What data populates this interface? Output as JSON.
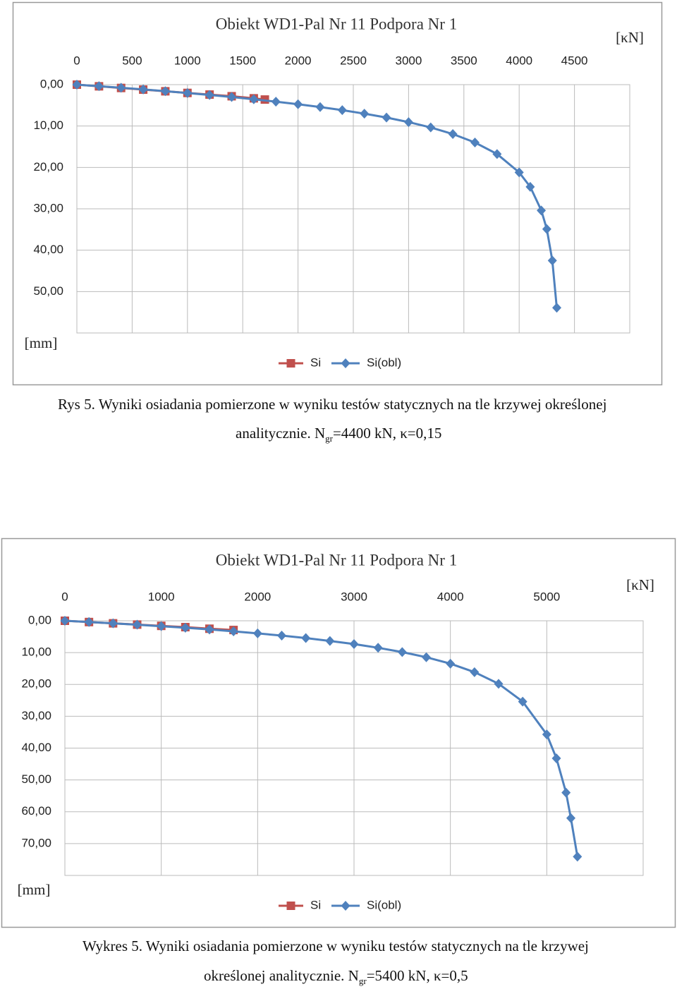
{
  "chart_data": [
    {
      "type": "line",
      "title": "Obiekt WD1-Pal Nr 11 Podpora Nr 1",
      "x_unit_label": "[κN]",
      "y_unit_label": "[mm]",
      "x_axis_position": "top",
      "y_reversed": true,
      "grid": true,
      "xlim": [
        0,
        5000
      ],
      "xticks": [
        0,
        500,
        1000,
        1500,
        2000,
        2500,
        3000,
        3500,
        4000,
        4500
      ],
      "ylim": [
        0,
        60
      ],
      "yticks": [
        {
          "value": 0,
          "label": "0,00"
        },
        {
          "value": 10,
          "label": "10,00"
        },
        {
          "value": 20,
          "label": "20,00"
        },
        {
          "value": 30,
          "label": "30,00"
        },
        {
          "value": 40,
          "label": "40,00"
        },
        {
          "value": 50,
          "label": "50,00"
        }
      ],
      "series": [
        {
          "name": "Si",
          "color": "#c0504d",
          "marker": "square",
          "x": [
            0,
            200,
            400,
            600,
            800,
            1000,
            1200,
            1400,
            1600,
            1700
          ],
          "values": [
            0,
            0.4,
            0.8,
            1.2,
            1.6,
            2.0,
            2.4,
            2.8,
            3.3,
            3.6
          ]
        },
        {
          "name": "Si(obl)",
          "color": "#4f81bd",
          "marker": "diamond",
          "x": [
            0,
            200,
            400,
            600,
            800,
            1000,
            1200,
            1400,
            1600,
            1800,
            2000,
            2200,
            2400,
            2600,
            2800,
            3000,
            3200,
            3400,
            3600,
            3800,
            4000,
            4100,
            4200,
            4250,
            4300,
            4340
          ],
          "values": [
            0,
            0.37,
            0.75,
            1.15,
            1.58,
            2.02,
            2.49,
            2.99,
            3.53,
            4.11,
            4.73,
            5.41,
            6.16,
            7.0,
            7.95,
            9.05,
            10.34,
            11.93,
            13.97,
            16.76,
            21.2,
            24.7,
            30.4,
            34.9,
            42.5,
            53.9
          ]
        }
      ]
    },
    {
      "type": "line",
      "title": "Obiekt WD1-Pal Nr 11 Podpora Nr 1",
      "x_unit_label": "[κN]",
      "y_unit_label": "[mm]",
      "x_axis_position": "top",
      "y_reversed": true,
      "grid": true,
      "xlim": [
        0,
        6000
      ],
      "xticks": [
        0,
        1000,
        2000,
        3000,
        4000,
        5000
      ],
      "ylim": [
        0,
        80
      ],
      "yticks": [
        {
          "value": 0,
          "label": "0,00"
        },
        {
          "value": 10,
          "label": "10,00"
        },
        {
          "value": 20,
          "label": "20,00"
        },
        {
          "value": 30,
          "label": "30,00"
        },
        {
          "value": 40,
          "label": "40,00"
        },
        {
          "value": 50,
          "label": "50,00"
        },
        {
          "value": 60,
          "label": "60,00"
        },
        {
          "value": 70,
          "label": "70,00"
        }
      ],
      "series": [
        {
          "name": "Si",
          "color": "#c0504d",
          "marker": "square",
          "x": [
            0,
            250,
            500,
            750,
            1000,
            1250,
            1500,
            1750
          ],
          "values": [
            0,
            0.4,
            0.8,
            1.2,
            1.6,
            2.0,
            2.5,
            2.9
          ]
        },
        {
          "name": "Si(obl)",
          "color": "#4f81bd",
          "marker": "diamond",
          "x": [
            0,
            250,
            500,
            750,
            1000,
            1250,
            1500,
            1750,
            2000,
            2250,
            2500,
            2750,
            3000,
            3250,
            3500,
            3750,
            4000,
            4250,
            4500,
            4750,
            5000,
            5100,
            5200,
            5250,
            5318
          ],
          "values": [
            0,
            0.39,
            0.8,
            1.23,
            1.7,
            2.2,
            2.73,
            3.32,
            3.96,
            4.66,
            5.44,
            6.33,
            7.32,
            8.48,
            9.83,
            11.46,
            13.48,
            16.14,
            19.8,
            25.4,
            35.7,
            43.2,
            54.0,
            62.0,
            74.1
          ]
        }
      ]
    }
  ],
  "captions": [
    {
      "line1": "Rys 5. Wyniki osiadania pomierzone w wyniku testów statycznych na tle krzywej określonej",
      "line2_start": "analitycznie. N",
      "subscript": "gr",
      "line2_end": "=4400 kN, κ=0,15"
    },
    {
      "line1": "Wykres 5. Wyniki osiadania pomierzone w wyniku testów statycznych na tle krzywej",
      "line2_start": "określonej analitycznie. N",
      "subscript": "gr",
      "line2_end": "=5400 kN, κ=0,5"
    }
  ]
}
